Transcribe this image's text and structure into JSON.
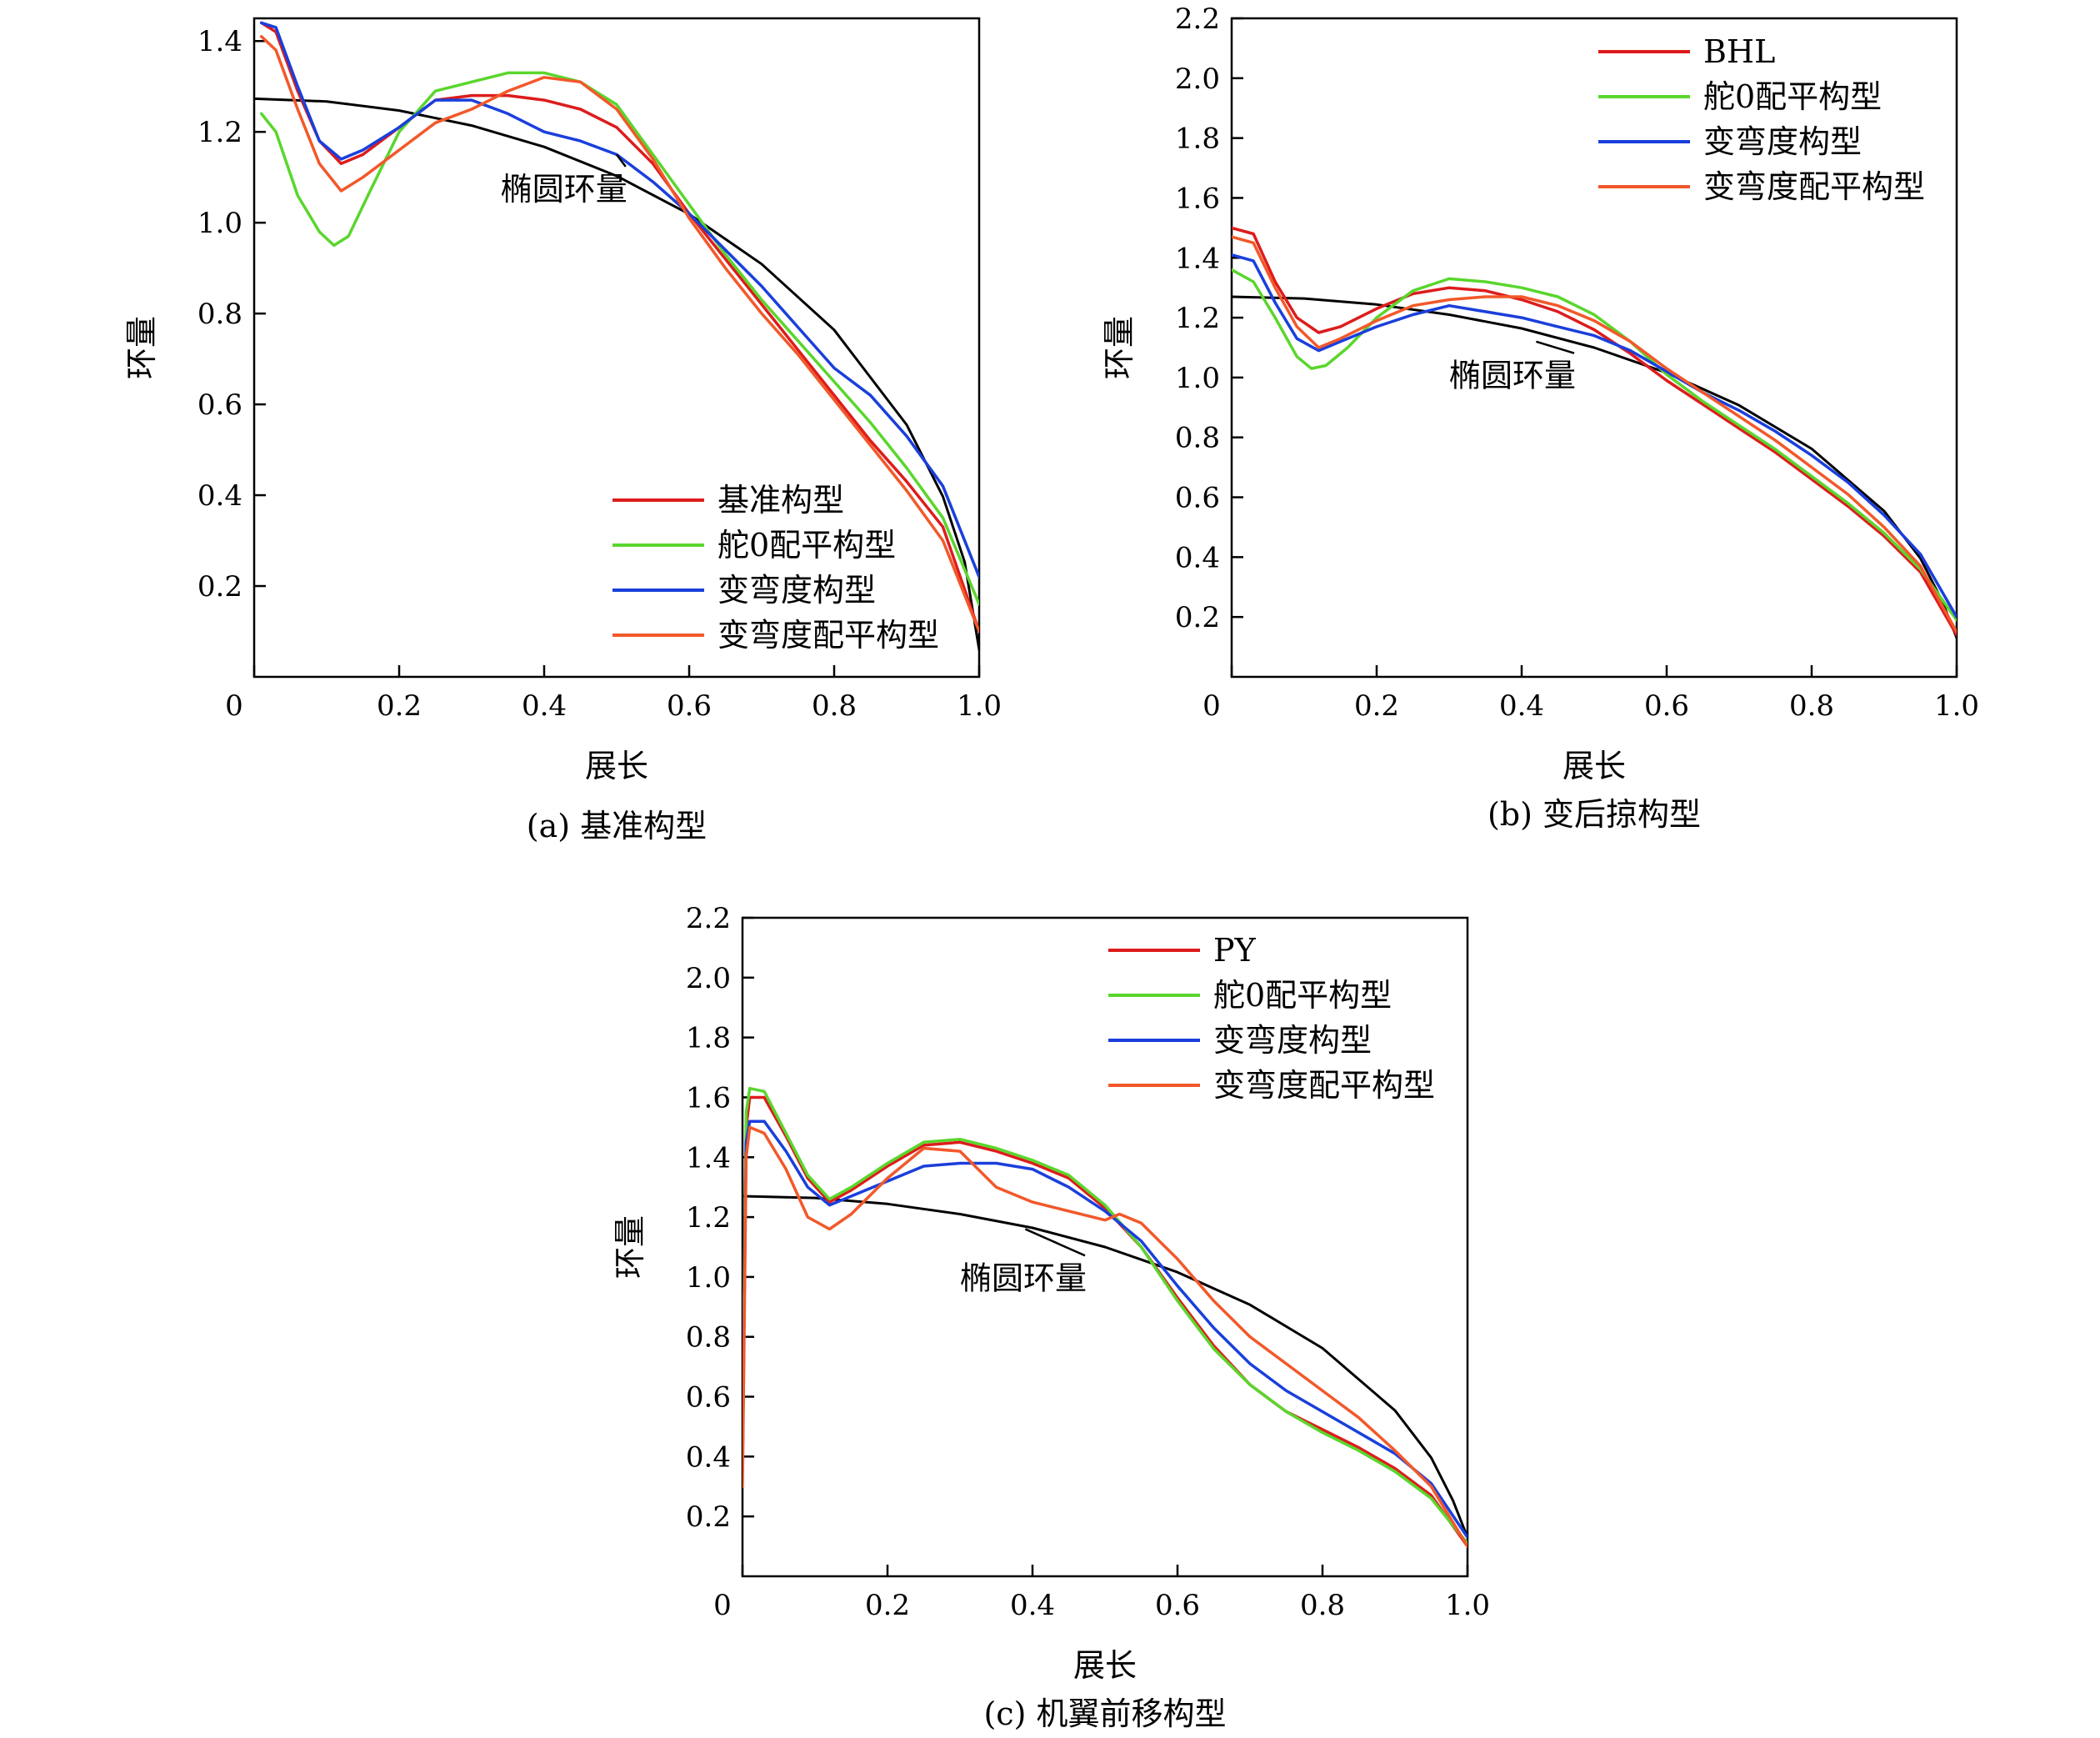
{
  "chart_data": [
    {
      "id": "a",
      "type": "line",
      "title": "",
      "caption": "(a) 基准构型",
      "xlabel": "展长",
      "ylabel": "环量",
      "xlim": [
        0,
        1
      ],
      "ylim": [
        0,
        1.45
      ],
      "xticks": [
        0,
        0.2,
        0.4,
        0.6,
        0.8,
        1.0
      ],
      "xtick_labels": [
        "0",
        "0.2",
        "0.4",
        "0.6",
        "0.8",
        "1.0"
      ],
      "yticks": [
        0.2,
        0.4,
        0.6,
        0.8,
        1.0,
        1.2,
        1.4
      ],
      "ytick_labels": [
        "0.2",
        "0.4",
        "0.6",
        "0.8",
        "1.0",
        "1.2",
        "1.4"
      ],
      "grid": false,
      "legend_position": "bottom-right",
      "annotation": {
        "text": "椭圆环量",
        "x": 0.34,
        "y": 1.05,
        "arrow_x": 0.5,
        "arrow_y": 1.15
      },
      "series": [
        {
          "name": "",
          "color": "#000000",
          "x": [
            0.0,
            0.1,
            0.2,
            0.3,
            0.4,
            0.5,
            0.6,
            0.7,
            0.8,
            0.9,
            0.95,
            0.98,
            1.0
          ],
          "y": [
            1.273,
            1.267,
            1.247,
            1.214,
            1.167,
            1.103,
            1.019,
            0.909,
            0.764,
            0.555,
            0.397,
            0.253,
            0.06
          ]
        },
        {
          "name": "基准构型",
          "color": "#dd1c1c",
          "x": [
            0.01,
            0.03,
            0.06,
            0.09,
            0.12,
            0.15,
            0.2,
            0.25,
            0.3,
            0.35,
            0.4,
            0.45,
            0.5,
            0.55,
            0.6,
            0.65,
            0.7,
            0.75,
            0.8,
            0.85,
            0.9,
            0.95,
            1.0
          ],
          "y": [
            1.44,
            1.42,
            1.29,
            1.18,
            1.13,
            1.15,
            1.21,
            1.27,
            1.28,
            1.28,
            1.27,
            1.25,
            1.21,
            1.13,
            1.02,
            0.92,
            0.82,
            0.72,
            0.62,
            0.52,
            0.43,
            0.33,
            0.1
          ]
        },
        {
          "name": "舵0配平构型",
          "color": "#5ad62d",
          "x": [
            0.01,
            0.03,
            0.06,
            0.09,
            0.11,
            0.13,
            0.16,
            0.2,
            0.25,
            0.3,
            0.35,
            0.4,
            0.45,
            0.5,
            0.55,
            0.6,
            0.65,
            0.7,
            0.75,
            0.8,
            0.85,
            0.9,
            0.95,
            1.0
          ],
          "y": [
            1.24,
            1.2,
            1.06,
            0.98,
            0.95,
            0.97,
            1.07,
            1.2,
            1.29,
            1.31,
            1.33,
            1.33,
            1.31,
            1.26,
            1.15,
            1.04,
            0.93,
            0.83,
            0.74,
            0.65,
            0.56,
            0.46,
            0.35,
            0.16
          ]
        },
        {
          "name": "变弯度构型",
          "color": "#1a3fdc",
          "x": [
            0.01,
            0.03,
            0.06,
            0.09,
            0.12,
            0.15,
            0.2,
            0.25,
            0.3,
            0.35,
            0.4,
            0.45,
            0.5,
            0.55,
            0.6,
            0.65,
            0.7,
            0.75,
            0.8,
            0.85,
            0.9,
            0.95,
            1.0
          ],
          "y": [
            1.44,
            1.43,
            1.3,
            1.18,
            1.14,
            1.16,
            1.21,
            1.27,
            1.27,
            1.24,
            1.2,
            1.18,
            1.15,
            1.09,
            1.02,
            0.94,
            0.86,
            0.77,
            0.68,
            0.62,
            0.53,
            0.42,
            0.22
          ]
        },
        {
          "name": "变弯度配平构型",
          "color": "#f2582a",
          "x": [
            0.01,
            0.03,
            0.06,
            0.09,
            0.12,
            0.15,
            0.2,
            0.25,
            0.3,
            0.35,
            0.4,
            0.45,
            0.5,
            0.55,
            0.6,
            0.65,
            0.7,
            0.75,
            0.8,
            0.85,
            0.9,
            0.95,
            1.0
          ],
          "y": [
            1.41,
            1.38,
            1.25,
            1.13,
            1.07,
            1.1,
            1.16,
            1.22,
            1.25,
            1.29,
            1.32,
            1.31,
            1.25,
            1.14,
            1.01,
            0.9,
            0.8,
            0.71,
            0.61,
            0.51,
            0.41,
            0.3,
            0.1
          ]
        }
      ]
    },
    {
      "id": "b",
      "type": "line",
      "title": "",
      "caption": "(b) 变后掠构型",
      "xlabel": "展长",
      "ylabel": "环量",
      "xlim": [
        0,
        1
      ],
      "ylim": [
        0,
        2.2
      ],
      "xticks": [
        0,
        0.2,
        0.4,
        0.6,
        0.8,
        1.0
      ],
      "xtick_labels": [
        "0",
        "0.2",
        "0.4",
        "0.6",
        "0.8",
        "1.0"
      ],
      "yticks": [
        0.2,
        0.4,
        0.6,
        0.8,
        1.0,
        1.2,
        1.4,
        1.6,
        1.8,
        2.0,
        2.2
      ],
      "ytick_labels": [
        "0.2",
        "0.4",
        "0.6",
        "0.8",
        "1.0",
        "1.2",
        "1.4",
        "1.6",
        "1.8",
        "2.0",
        "2.2"
      ],
      "grid": false,
      "legend_position": "top-right",
      "annotation": {
        "text": "椭圆环量",
        "x": 0.3,
        "y": 0.97,
        "arrow_x": 0.42,
        "arrow_y": 1.12
      },
      "series": [
        {
          "name": "",
          "color": "#000000",
          "x": [
            0.0,
            0.1,
            0.2,
            0.3,
            0.4,
            0.5,
            0.6,
            0.7,
            0.8,
            0.9,
            0.95,
            0.98,
            1.0
          ],
          "y": [
            1.27,
            1.264,
            1.244,
            1.21,
            1.164,
            1.1,
            1.016,
            0.907,
            0.762,
            0.554,
            0.396,
            0.253,
            0.13
          ]
        },
        {
          "name": "BHL",
          "color": "#dd1c1c",
          "x": [
            0.0,
            0.03,
            0.06,
            0.09,
            0.12,
            0.15,
            0.2,
            0.25,
            0.3,
            0.35,
            0.4,
            0.45,
            0.5,
            0.55,
            0.6,
            0.65,
            0.7,
            0.75,
            0.8,
            0.85,
            0.9,
            0.95,
            1.0
          ],
          "y": [
            1.5,
            1.48,
            1.32,
            1.2,
            1.15,
            1.17,
            1.23,
            1.28,
            1.3,
            1.29,
            1.26,
            1.22,
            1.16,
            1.08,
            0.99,
            0.91,
            0.83,
            0.75,
            0.66,
            0.57,
            0.47,
            0.35,
            0.14
          ]
        },
        {
          "name": "舵0配平构型",
          "color": "#5ad62d",
          "x": [
            0.0,
            0.03,
            0.06,
            0.09,
            0.11,
            0.13,
            0.16,
            0.2,
            0.25,
            0.3,
            0.35,
            0.4,
            0.45,
            0.5,
            0.55,
            0.6,
            0.65,
            0.7,
            0.75,
            0.8,
            0.85,
            0.9,
            0.95,
            1.0
          ],
          "y": [
            1.36,
            1.32,
            1.2,
            1.07,
            1.03,
            1.04,
            1.1,
            1.2,
            1.29,
            1.33,
            1.32,
            1.3,
            1.27,
            1.21,
            1.12,
            1.01,
            0.92,
            0.84,
            0.76,
            0.67,
            0.58,
            0.48,
            0.36,
            0.19
          ]
        },
        {
          "name": "变弯度构型",
          "color": "#1a3fdc",
          "x": [
            0.0,
            0.03,
            0.06,
            0.09,
            0.12,
            0.15,
            0.2,
            0.25,
            0.3,
            0.35,
            0.4,
            0.45,
            0.5,
            0.55,
            0.6,
            0.65,
            0.7,
            0.75,
            0.8,
            0.85,
            0.9,
            0.95,
            1.0
          ],
          "y": [
            1.41,
            1.39,
            1.25,
            1.13,
            1.09,
            1.12,
            1.17,
            1.21,
            1.24,
            1.22,
            1.2,
            1.17,
            1.14,
            1.09,
            1.02,
            0.95,
            0.89,
            0.82,
            0.74,
            0.65,
            0.54,
            0.41,
            0.2
          ]
        },
        {
          "name": "变弯度配平构型",
          "color": "#f2582a",
          "x": [
            0.0,
            0.03,
            0.06,
            0.09,
            0.12,
            0.15,
            0.2,
            0.25,
            0.3,
            0.35,
            0.4,
            0.45,
            0.5,
            0.55,
            0.6,
            0.65,
            0.7,
            0.75,
            0.8,
            0.85,
            0.9,
            0.95,
            1.0
          ],
          "y": [
            1.47,
            1.45,
            1.3,
            1.17,
            1.1,
            1.13,
            1.19,
            1.24,
            1.26,
            1.27,
            1.27,
            1.24,
            1.19,
            1.12,
            1.03,
            0.95,
            0.87,
            0.79,
            0.7,
            0.61,
            0.5,
            0.37,
            0.15
          ]
        }
      ]
    },
    {
      "id": "c",
      "type": "line",
      "title": "",
      "caption": "(c) 机翼前移构型",
      "xlabel": "展长",
      "ylabel": "环量",
      "xlim": [
        0,
        1
      ],
      "ylim": [
        0,
        2.2
      ],
      "xticks": [
        0,
        0.2,
        0.4,
        0.6,
        0.8,
        1.0
      ],
      "xtick_labels": [
        "0",
        "0.2",
        "0.4",
        "0.6",
        "0.8",
        "1.0"
      ],
      "yticks": [
        0.2,
        0.4,
        0.6,
        0.8,
        1.0,
        1.2,
        1.4,
        1.6,
        1.8,
        2.0,
        2.2
      ],
      "ytick_labels": [
        "0.2",
        "0.4",
        "0.6",
        "0.8",
        "1.0",
        "1.2",
        "1.4",
        "1.6",
        "1.8",
        "2.0",
        "2.2"
      ],
      "grid": false,
      "legend_position": "top-right",
      "annotation": {
        "text": "椭圆环量",
        "x": 0.3,
        "y": 0.96,
        "arrow_x": 0.39,
        "arrow_y": 1.16
      },
      "series": [
        {
          "name": "",
          "color": "#000000",
          "x": [
            0.0,
            0.1,
            0.2,
            0.3,
            0.4,
            0.5,
            0.6,
            0.7,
            0.8,
            0.9,
            0.95,
            0.98,
            1.0
          ],
          "y": [
            1.27,
            1.264,
            1.244,
            1.21,
            1.164,
            1.1,
            1.016,
            0.907,
            0.762,
            0.554,
            0.396,
            0.253,
            0.13
          ]
        },
        {
          "name": "PY",
          "color": "#dd1c1c",
          "x": [
            0.0,
            0.005,
            0.01,
            0.03,
            0.06,
            0.09,
            0.12,
            0.15,
            0.2,
            0.25,
            0.3,
            0.35,
            0.4,
            0.45,
            0.5,
            0.55,
            0.6,
            0.65,
            0.7,
            0.75,
            0.8,
            0.85,
            0.9,
            0.95,
            1.0
          ],
          "y": [
            0.35,
            1.5,
            1.6,
            1.6,
            1.47,
            1.33,
            1.25,
            1.29,
            1.37,
            1.44,
            1.45,
            1.42,
            1.38,
            1.33,
            1.23,
            1.1,
            0.93,
            0.77,
            0.64,
            0.55,
            0.49,
            0.43,
            0.36,
            0.27,
            0.1
          ]
        },
        {
          "name": "舵0配平构型",
          "color": "#5ad62d",
          "x": [
            0.0,
            0.005,
            0.01,
            0.03,
            0.06,
            0.09,
            0.12,
            0.15,
            0.2,
            0.25,
            0.3,
            0.35,
            0.4,
            0.45,
            0.5,
            0.55,
            0.6,
            0.65,
            0.7,
            0.75,
            0.8,
            0.85,
            0.9,
            0.95,
            1.0
          ],
          "y": [
            0.5,
            1.55,
            1.63,
            1.62,
            1.48,
            1.34,
            1.26,
            1.3,
            1.38,
            1.45,
            1.46,
            1.43,
            1.39,
            1.34,
            1.24,
            1.1,
            0.92,
            0.76,
            0.64,
            0.55,
            0.48,
            0.42,
            0.35,
            0.26,
            0.11
          ]
        },
        {
          "name": "变弯度构型",
          "color": "#1a3fdc",
          "x": [
            0.0,
            0.005,
            0.01,
            0.03,
            0.06,
            0.09,
            0.12,
            0.15,
            0.2,
            0.25,
            0.3,
            0.35,
            0.4,
            0.45,
            0.5,
            0.55,
            0.6,
            0.65,
            0.7,
            0.75,
            0.8,
            0.85,
            0.9,
            0.95,
            1.0
          ],
          "y": [
            0.4,
            1.45,
            1.52,
            1.52,
            1.42,
            1.3,
            1.24,
            1.27,
            1.32,
            1.37,
            1.38,
            1.38,
            1.36,
            1.3,
            1.22,
            1.12,
            0.97,
            0.83,
            0.71,
            0.62,
            0.55,
            0.48,
            0.41,
            0.31,
            0.13
          ]
        },
        {
          "name": "变弯度配平构型",
          "color": "#f2582a",
          "x": [
            0.0,
            0.005,
            0.01,
            0.03,
            0.06,
            0.09,
            0.12,
            0.15,
            0.2,
            0.25,
            0.3,
            0.35,
            0.4,
            0.45,
            0.5,
            0.52,
            0.55,
            0.6,
            0.65,
            0.7,
            0.75,
            0.8,
            0.85,
            0.9,
            0.95,
            1.0
          ],
          "y": [
            0.3,
            1.4,
            1.5,
            1.48,
            1.36,
            1.2,
            1.16,
            1.21,
            1.33,
            1.43,
            1.42,
            1.3,
            1.25,
            1.22,
            1.19,
            1.21,
            1.18,
            1.06,
            0.92,
            0.8,
            0.71,
            0.62,
            0.53,
            0.42,
            0.3,
            0.1
          ]
        }
      ]
    }
  ]
}
